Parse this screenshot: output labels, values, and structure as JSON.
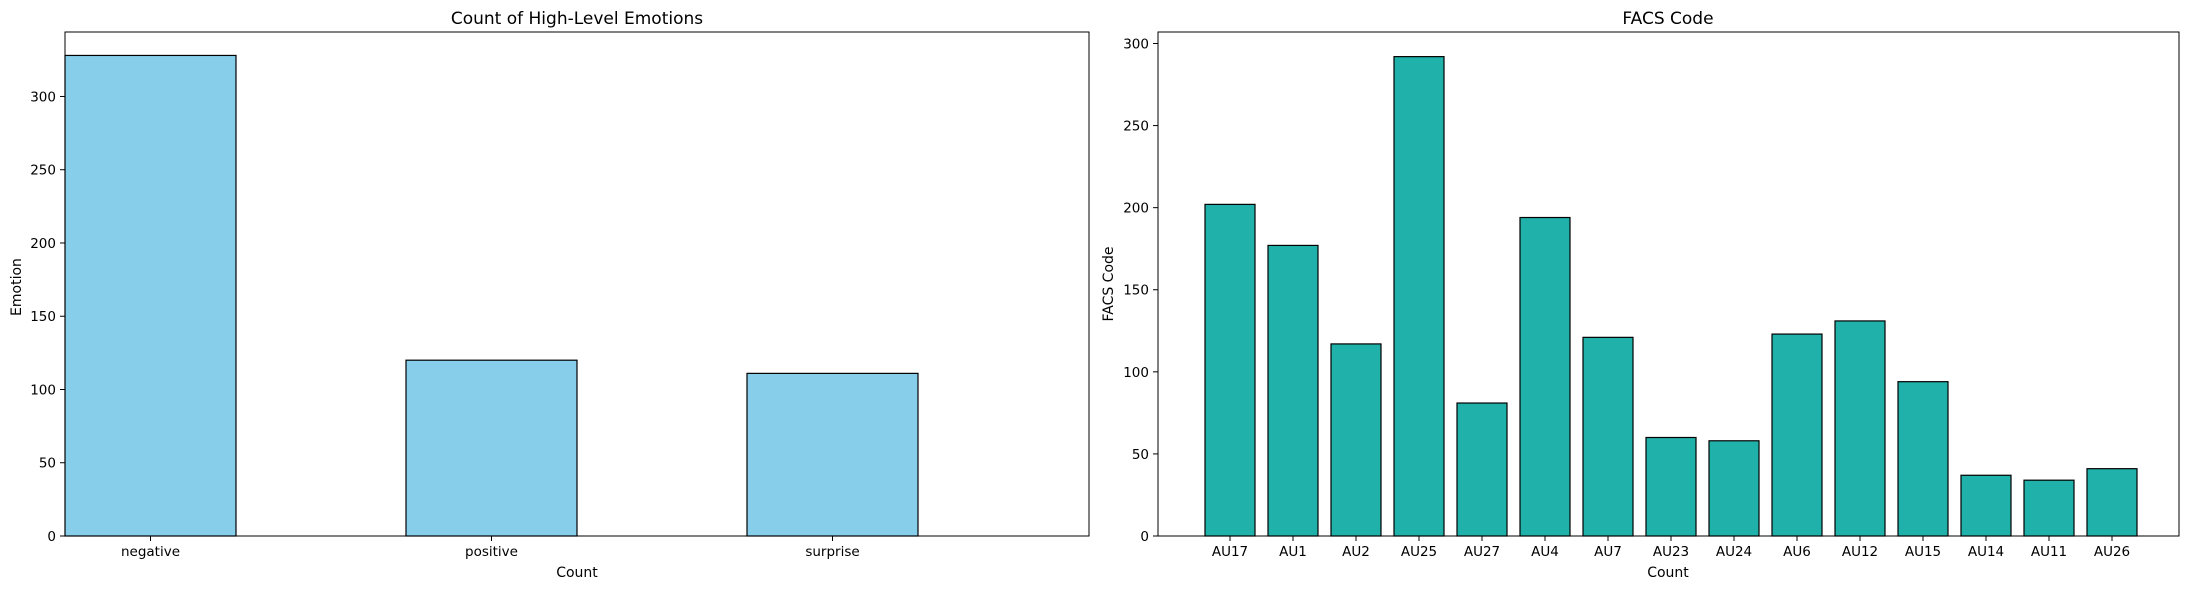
{
  "chart_data": [
    {
      "type": "bar",
      "title": "Count of High-Level Emotions",
      "xlabel": "Count",
      "ylabel": "Emotion",
      "categories": [
        "negative",
        "positive",
        "surprise"
      ],
      "values": [
        328,
        120,
        111
      ],
      "ylim": [
        0,
        344
      ],
      "yticks": [
        0,
        50,
        100,
        150,
        200,
        250,
        300
      ],
      "bar_color": "#87ceeb",
      "edge_color": "#000000",
      "grid": false,
      "legend": "none"
    },
    {
      "type": "bar",
      "title": "FACS Code",
      "xlabel": "Count",
      "ylabel": "FACS Code",
      "categories": [
        "AU17",
        "AU1",
        "AU2",
        "AU25",
        "AU27",
        "AU4",
        "AU7",
        "AU23",
        "AU24",
        "AU6",
        "AU12",
        "AU15",
        "AU14",
        "AU11",
        "AU26"
      ],
      "values": [
        202,
        177,
        117,
        292,
        81,
        194,
        121,
        60,
        58,
        123,
        131,
        94,
        37,
        34,
        41
      ],
      "ylim": [
        0,
        307
      ],
      "yticks": [
        0,
        50,
        100,
        150,
        200,
        250,
        300
      ],
      "bar_color": "#20b2aa",
      "edge_color": "#000000",
      "grid": false,
      "legend": "none"
    }
  ]
}
